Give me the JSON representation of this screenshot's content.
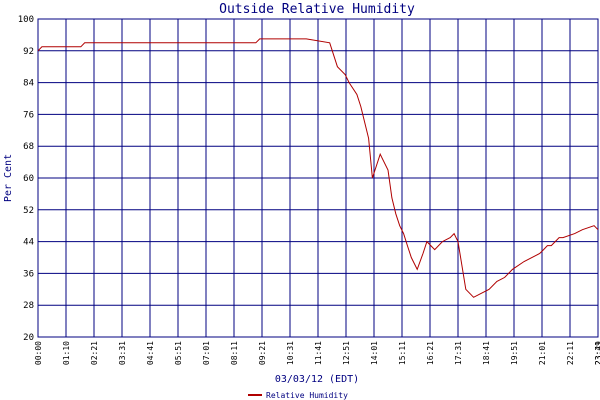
{
  "chart_data": {
    "type": "line",
    "title": "Outside Relative Humidity",
    "xlabel": "03/03/12 (EDT)",
    "ylabel": "Per Cent",
    "ylim": [
      20,
      100
    ],
    "y_ticks": [
      20,
      28,
      36,
      44,
      52,
      60,
      68,
      76,
      84,
      92,
      100
    ],
    "x_tick_labels": [
      "00:00",
      "01:10",
      "02:21",
      "03:31",
      "04:41",
      "05:51",
      "07:01",
      "08:11",
      "09:21",
      "10:31",
      "11:41",
      "12:51",
      "14:01",
      "15:11",
      "16:21",
      "17:31",
      "18:41",
      "19:51",
      "21:01",
      "22:11",
      "23:21",
      "23:49"
    ],
    "grid": true,
    "legend_position": "bottom-center",
    "colors": {
      "line": "#b00000",
      "grid": "#000080",
      "text": "#000080"
    },
    "series": [
      {
        "name": "Relative Humidity",
        "x_minutes": [
          0,
          10,
          20,
          110,
          120,
          500,
          560,
          570,
          600,
          690,
          750,
          770,
          790,
          800,
          820,
          830,
          850,
          860,
          880,
          900,
          910,
          920,
          930,
          940,
          950,
          960,
          975,
          990,
          1000,
          1020,
          1040,
          1060,
          1070,
          1080,
          1090,
          1100,
          1120,
          1140,
          1160,
          1180,
          1200,
          1220,
          1250,
          1290,
          1300,
          1310,
          1320,
          1330,
          1340,
          1350,
          1380,
          1400,
          1430,
          1440
        ],
        "values": [
          92,
          93,
          93,
          93,
          94,
          94,
          94,
          95,
          95,
          95,
          94,
          88,
          86,
          84,
          81,
          78,
          70,
          60,
          66,
          62,
          55,
          51,
          48,
          46,
          43,
          40,
          37,
          41,
          44,
          42,
          44,
          45,
          46,
          44,
          38,
          32,
          30,
          31,
          32,
          34,
          35,
          37,
          39,
          41,
          42,
          43,
          43,
          44,
          45,
          45,
          46,
          47,
          48,
          47
        ]
      }
    ]
  }
}
